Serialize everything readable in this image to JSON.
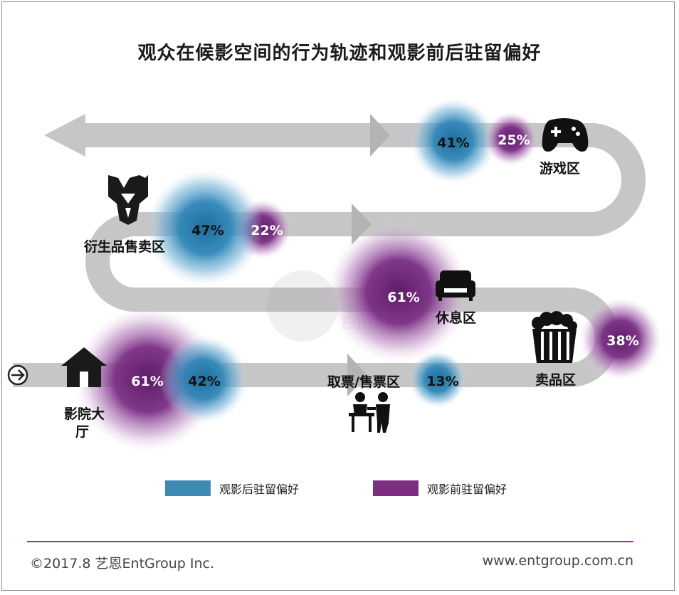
{
  "title": "观众在候影空间的行为轨迹和观影前后驻留偏好",
  "zones": {
    "game": {
      "label": "游戏区",
      "after_pct": "41%",
      "before_pct": "25%",
      "icon": "gamepad-icon"
    },
    "merch": {
      "label": "衍生品售卖区",
      "after_pct": "47%",
      "before_pct": "22%",
      "icon": "decepticon-logo-icon"
    },
    "lounge": {
      "label": "休息区",
      "before_pct": "61%",
      "icon": "sofa-icon"
    },
    "snack": {
      "label": "卖品区",
      "before_pct": "38%",
      "icon": "popcorn-icon"
    },
    "ticket": {
      "label": "取票/售票区",
      "after_pct": "13%",
      "icon": "ticket-counter-icon"
    },
    "lobby": {
      "label_line1": "影院大",
      "label_line2": "厅",
      "before_pct": "61%",
      "after_pct": "42%",
      "icon": "house-icon"
    }
  },
  "legend": {
    "after": {
      "label": "观影后驻留偏好",
      "color": "#3d8ab5"
    },
    "before": {
      "label": "观影前驻留偏好",
      "color": "#7b2e82"
    }
  },
  "colors": {
    "path": "#c9c9c9",
    "blue": "#2e7fae",
    "purple": "#6f2377"
  },
  "footer": {
    "left": "©2017.8 艺恩EntGroup Inc.",
    "right": "www.entgroup.com.cn"
  }
}
